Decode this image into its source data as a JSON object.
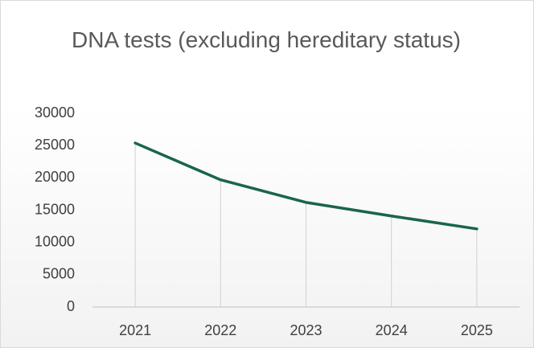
{
  "chart_data": {
    "type": "line",
    "title": "DNA tests (excluding hereditary status)",
    "categories": [
      "2021",
      "2022",
      "2023",
      "2024",
      "2025"
    ],
    "values": [
      25400,
      19700,
      16200,
      14100,
      12100
    ],
    "color": "#19654c",
    "ylim": [
      0,
      30000
    ],
    "yticks": [
      0,
      5000,
      10000,
      15000,
      20000,
      25000,
      30000
    ],
    "drop_lines": true
  }
}
